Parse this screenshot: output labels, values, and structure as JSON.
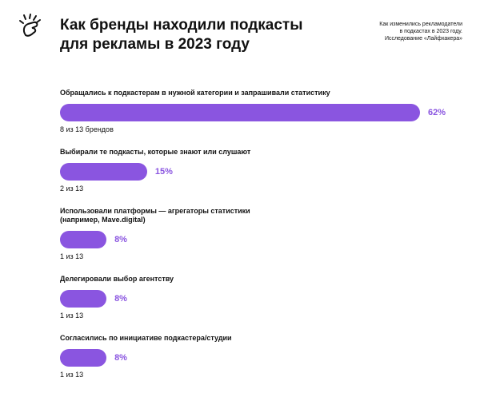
{
  "chart_data": {
    "type": "bar",
    "title": "Как бренды находили подкасты для рекламы в 2023 году",
    "subtitle": [
      "Как изменились рекламодатели",
      "в подкастах в 2023 году.",
      "Исследование «Лайфхакера»"
    ],
    "categories": [
      "Обращались к подкастерам в нужной категории и запрашивали статистику",
      "Выбирали те подкасты, которые знают или слушают",
      "Использовали платформы — агрегаторы статистики (например, Mave.digital)",
      "Делегировали выбор агентству",
      "Согласились по инициативе подкастера/студии"
    ],
    "values": [
      62,
      15,
      8,
      8,
      8
    ],
    "value_labels": [
      "62%",
      "15%",
      "8%",
      "8%",
      "8%"
    ],
    "notes": [
      "8 из 13 брендов",
      "2 из 13",
      "1 из 13",
      "1 из 13",
      "1 из 13"
    ],
    "color": "#8a55e0"
  }
}
